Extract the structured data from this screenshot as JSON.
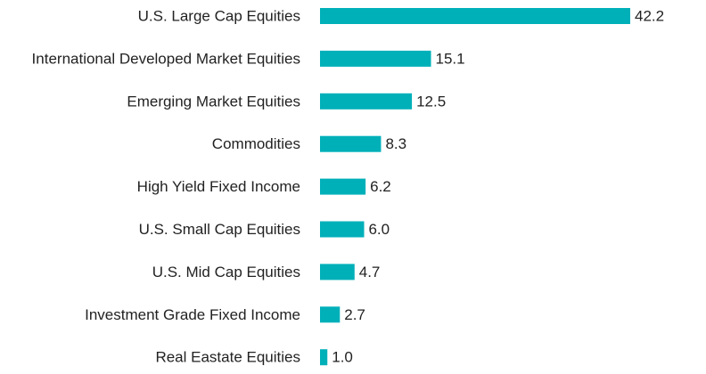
{
  "chart_data": {
    "type": "bar",
    "orientation": "horizontal",
    "categories": [
      "U.S. Large Cap Equities",
      "International Developed Market Equities",
      "Emerging Market Equities",
      "Commodities",
      "High Yield Fixed Income",
      "U.S. Small Cap Equities",
      "U.S. Mid Cap Equities",
      "Investment Grade Fixed Income",
      "Real Eastate Equities"
    ],
    "values": [
      42.2,
      15.1,
      12.5,
      8.3,
      6.2,
      6.0,
      4.7,
      2.7,
      1.0
    ],
    "value_labels": [
      "42.2",
      "15.1",
      "12.5",
      "8.3",
      "6.2",
      "6.0",
      "4.7",
      "2.7",
      "1.0"
    ],
    "title": "",
    "xlabel": "",
    "ylabel": "",
    "xlim": [
      0,
      42.2
    ],
    "grid": false,
    "legend": "none",
    "bar_color": "#00B0B9"
  }
}
